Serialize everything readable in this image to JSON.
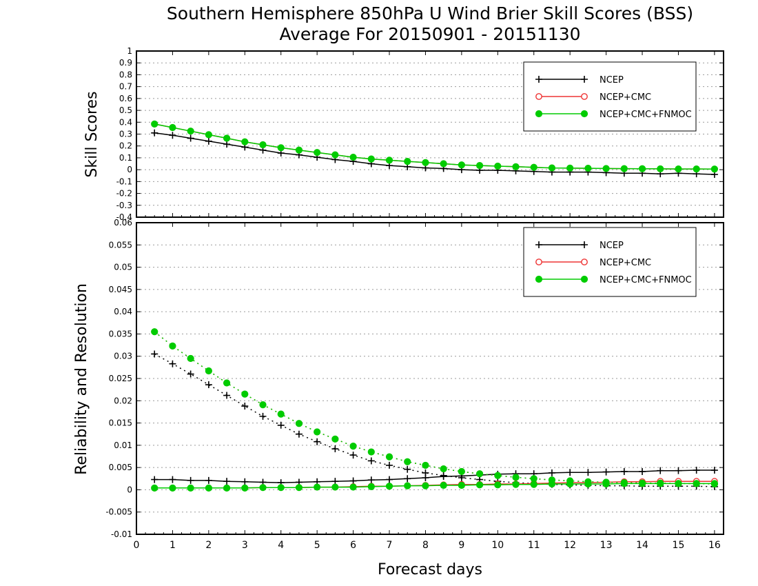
{
  "chart_data": [
    {
      "type": "line",
      "title": "Southern Hemisphere 850hPa U Wind Brier Skill Scores (BSS)",
      "subtitle": "Average For 20150901 - 20151130",
      "ylabel": "Skill Scores",
      "xlabel": "",
      "xlim": [
        0,
        16.25
      ],
      "ylim": [
        -0.4,
        1
      ],
      "yticks": [
        "-0.4",
        "-0.3",
        "-0.2",
        "-0.1",
        "0",
        "0.1",
        "0.2",
        "0.3",
        "0.4",
        "0.5",
        "0.6",
        "0.7",
        "0.8",
        "0.9",
        "1"
      ],
      "grid": true,
      "legend": "top-right",
      "x": [
        0.5,
        1,
        1.5,
        2,
        2.5,
        3,
        3.5,
        4,
        4.5,
        5,
        5.5,
        6,
        6.5,
        7,
        7.5,
        8,
        8.5,
        9,
        9.5,
        10,
        10.5,
        11,
        11.5,
        12,
        12.5,
        13,
        13.5,
        14,
        14.5,
        15,
        15.5,
        16
      ],
      "series": [
        {
          "name": "NCEP",
          "color": "#000000",
          "marker": "plus",
          "values": [
            0.31,
            0.29,
            0.265,
            0.24,
            0.215,
            0.19,
            0.165,
            0.14,
            0.125,
            0.105,
            0.085,
            0.07,
            0.05,
            0.035,
            0.025,
            0.015,
            0.01,
            0.0,
            -0.005,
            -0.005,
            -0.01,
            -0.015,
            -0.02,
            -0.02,
            -0.02,
            -0.025,
            -0.03,
            -0.03,
            -0.035,
            -0.03,
            -0.035,
            -0.04
          ]
        },
        {
          "name": "NCEP+CMC",
          "color": "#ee3333",
          "marker": "open-circle",
          "values": [
            0.385,
            0.355,
            0.325,
            0.295,
            0.265,
            0.235,
            0.21,
            0.185,
            0.165,
            0.145,
            0.125,
            0.105,
            0.09,
            0.08,
            0.07,
            0.06,
            0.05,
            0.04,
            0.035,
            0.03,
            0.025,
            0.02,
            0.015,
            0.013,
            0.012,
            0.01,
            0.009,
            0.008,
            0.007,
            0.006,
            0.006,
            0.005
          ]
        },
        {
          "name": "NCEP+CMC+FNMOC",
          "color": "#00cc00",
          "marker": "filled-circle",
          "values": [
            0.385,
            0.355,
            0.325,
            0.295,
            0.265,
            0.235,
            0.21,
            0.185,
            0.165,
            0.145,
            0.125,
            0.105,
            0.09,
            0.08,
            0.07,
            0.06,
            0.05,
            0.04,
            0.035,
            0.03,
            0.025,
            0.02,
            0.015,
            0.013,
            0.012,
            0.01,
            0.009,
            0.008,
            0.007,
            0.006,
            0.006,
            0.005
          ]
        }
      ]
    },
    {
      "type": "line",
      "ylabel": "Reliability and Resolution",
      "xlabel": "Forecast days",
      "xlim": [
        0,
        16.25
      ],
      "ylim": [
        -0.01,
        0.06
      ],
      "yticks": [
        "-0.01",
        "-0.005",
        "0",
        "0.005",
        "0.01",
        "0.015",
        "0.02",
        "0.025",
        "0.03",
        "0.035",
        "0.04",
        "0.045",
        "0.05",
        "0.055",
        "0.06"
      ],
      "xticks": [
        "0",
        "1",
        "2",
        "3",
        "4",
        "5",
        "6",
        "7",
        "8",
        "9",
        "10",
        "11",
        "12",
        "13",
        "14",
        "15",
        "16"
      ],
      "grid": true,
      "legend": "top-right",
      "x": [
        0.5,
        1,
        1.5,
        2,
        2.5,
        3,
        3.5,
        4,
        4.5,
        5,
        5.5,
        6,
        6.5,
        7,
        7.5,
        8,
        8.5,
        9,
        9.5,
        10,
        10.5,
        11,
        11.5,
        12,
        12.5,
        13,
        13.5,
        14,
        14.5,
        15,
        15.5,
        16
      ],
      "series": [
        {
          "name": "NCEP",
          "legend": true,
          "color": "#000000",
          "marker": "plus",
          "linestyle": "solid",
          "values": [
            0.0023,
            0.0023,
            0.0021,
            0.0021,
            0.0019,
            0.0018,
            0.0017,
            0.0016,
            0.0017,
            0.0018,
            0.0019,
            0.002,
            0.0022,
            0.0023,
            0.0025,
            0.0027,
            0.003,
            0.0031,
            0.0033,
            0.0035,
            0.0036,
            0.0036,
            0.0038,
            0.0039,
            0.0039,
            0.004,
            0.0041,
            0.0041,
            0.0043,
            0.0043,
            0.0044,
            0.0044
          ]
        },
        {
          "name": "NCEP",
          "legend": false,
          "color": "#000000",
          "marker": "plus",
          "linestyle": "dotted",
          "values": [
            0.0305,
            0.0283,
            0.026,
            0.0236,
            0.0212,
            0.0188,
            0.0165,
            0.0145,
            0.0125,
            0.0108,
            0.0092,
            0.0078,
            0.0065,
            0.0055,
            0.0046,
            0.0038,
            0.0032,
            0.0027,
            0.0023,
            0.0019,
            0.0016,
            0.0014,
            0.0012,
            0.0011,
            0.001,
            0.0009,
            0.0009,
            0.0008,
            0.0008,
            0.0008,
            0.0008,
            0.0007
          ]
        },
        {
          "name": "NCEP+CMC",
          "legend": true,
          "color": "#ee3333",
          "marker": "open-circle",
          "linestyle": "solid",
          "values": [
            0.0004,
            0.0004,
            0.0004,
            0.0004,
            0.0004,
            0.0004,
            0.0005,
            0.0005,
            0.0005,
            0.0006,
            0.0006,
            0.0007,
            0.0008,
            0.0008,
            0.0009,
            0.001,
            0.0011,
            0.0012,
            0.0012,
            0.0013,
            0.0013,
            0.0014,
            0.0015,
            0.0016,
            0.0016,
            0.0017,
            0.0018,
            0.0018,
            0.0019,
            0.0019,
            0.0019,
            0.0019
          ]
        },
        {
          "name": "NCEP+CMC",
          "legend": false,
          "color": "#ee3333",
          "marker": "open-circle",
          "linestyle": "dotted",
          "values": [
            0.0355,
            0.0323,
            0.0295,
            0.0267,
            0.024,
            0.0215,
            0.0191,
            0.017,
            0.0149,
            0.013,
            0.0114,
            0.0098,
            0.0085,
            0.0074,
            0.0063,
            0.0055,
            0.0047,
            0.0041,
            0.0036,
            0.0032,
            0.0028,
            0.0025,
            0.0022,
            0.002,
            0.0018,
            0.0017,
            0.0016,
            0.0015,
            0.0015,
            0.0014,
            0.0014,
            0.0013
          ]
        },
        {
          "name": "NCEP+CMC+FNMOC",
          "legend": true,
          "color": "#00cc00",
          "marker": "filled-circle",
          "linestyle": "solid",
          "values": [
            0.0004,
            0.0004,
            0.0004,
            0.0004,
            0.0004,
            0.0004,
            0.0005,
            0.0005,
            0.0005,
            0.0006,
            0.0006,
            0.0006,
            0.0007,
            0.0008,
            0.0009,
            0.0009,
            0.001,
            0.001,
            0.0011,
            0.0011,
            0.0012,
            0.0012,
            0.0013,
            0.0013,
            0.0013,
            0.0013,
            0.0014,
            0.0014,
            0.0014,
            0.0014,
            0.0014,
            0.0014
          ]
        },
        {
          "name": "NCEP+CMC+FNMOC",
          "legend": false,
          "color": "#00cc00",
          "marker": "filled-circle",
          "linestyle": "dotted",
          "values": [
            0.0355,
            0.0323,
            0.0295,
            0.0267,
            0.024,
            0.0215,
            0.0191,
            0.017,
            0.0149,
            0.013,
            0.0114,
            0.0098,
            0.0085,
            0.0074,
            0.0063,
            0.0055,
            0.0047,
            0.0041,
            0.0036,
            0.0032,
            0.0028,
            0.0025,
            0.0022,
            0.002,
            0.0018,
            0.0017,
            0.0016,
            0.0015,
            0.0015,
            0.0014,
            0.0014,
            0.0013
          ]
        }
      ]
    }
  ]
}
